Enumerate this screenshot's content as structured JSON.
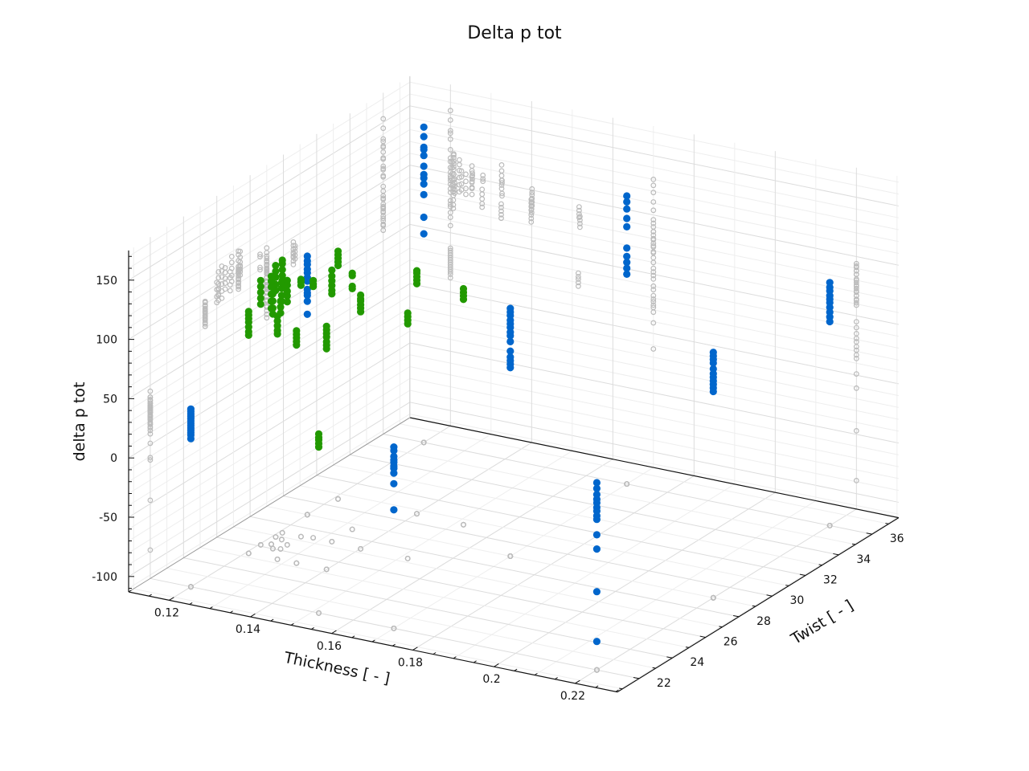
{
  "chart_data": {
    "type": "scatter",
    "projection": "3d",
    "title": "Delta p tot",
    "xlabel": "Thickness [ - ]",
    "ylabel": "Twist [ - ]",
    "zlabel": "delta p tot",
    "xlim": [
      0.11,
      0.2304
    ],
    "ylim": [
      20.7,
      37.6
    ],
    "zlim": [
      -113,
      175
    ],
    "xticks": [
      "0.12",
      "0.14",
      "0.16",
      "0.18",
      "0.2",
      "0.22"
    ],
    "yticks": [
      "22",
      "24",
      "26",
      "28",
      "30",
      "32",
      "34",
      "36"
    ],
    "zticks": [
      "-100",
      "-50",
      "0",
      "50",
      "100",
      "150"
    ],
    "grid": true,
    "wall_projections": true,
    "shadow_color": "#bbbbbb",
    "series": [
      {
        "name": "blue",
        "color": "#0066cc",
        "columns": [
          {
            "thickness": 0.12,
            "twist": 22,
            "z": [
              12,
              15,
              17,
              19,
              21,
              23,
              25,
              27,
              29,
              31,
              33,
              35,
              37
            ]
          },
          {
            "thickness": 0.12,
            "twist": 29,
            "z": [
              105,
              101,
              98,
              94,
              91,
              87,
              84,
              77,
              74,
              72,
              67,
              56
            ]
          },
          {
            "thickness": 0.12,
            "twist": 36,
            "z": [
              153,
              145,
              136,
              134,
              129,
              120,
              113,
              110,
              105,
              96,
              77,
              63
            ]
          },
          {
            "thickness": 0.17,
            "twist": 22,
            "z": [
              40,
              37,
              32,
              29,
              27,
              24,
              22,
              18,
              9,
              -13
            ]
          },
          {
            "thickness": 0.17,
            "twist": 29,
            "z": [
              96,
              93,
              90,
              86,
              83,
              80,
              76,
              73,
              68,
              60,
              55,
              52,
              49,
              46
            ]
          },
          {
            "thickness": 0.17,
            "twist": 36,
            "z": [
              130,
              125,
              119,
              111,
              104,
              86,
              79,
              74,
              69,
              64
            ]
          },
          {
            "thickness": 0.22,
            "twist": 22,
            "z": [
              45,
              40,
              35,
              31,
              28,
              24,
              21,
              17,
              14,
              1,
              -11,
              -47,
              -89
            ]
          },
          {
            "thickness": 0.22,
            "twist": 29,
            "z": [
              94,
              91,
              88,
              85,
              80,
              76,
              73,
              70,
              67,
              64,
              61
            ]
          },
          {
            "thickness": 0.22,
            "twist": 36,
            "z": [
              92,
              88,
              85,
              81,
              78,
              75,
              71,
              67,
              63,
              59
            ]
          }
        ]
      },
      {
        "name": "green",
        "color": "#229900",
        "columns": [
          {
            "thickness": 0.1207,
            "twist": 25.3,
            "z": [
              71,
              74,
              78,
              82,
              85,
              88,
              91
            ]
          },
          {
            "thickness": 0.1204,
            "twist": 26.1,
            "z": [
              90,
              95,
              100,
              105,
              110
            ]
          },
          {
            "thickness": 0.1222,
            "twist": 26.3,
            "z": [
              86,
              92,
              98,
              104,
              109,
              113
            ]
          },
          {
            "thickness": 0.1208,
            "twist": 26.9,
            "z": [
              95,
              100,
              106,
              111,
              116
            ]
          },
          {
            "thickness": 0.1208,
            "twist": 27.3,
            "z": [
              100,
              104,
              109,
              114,
              117
            ]
          },
          {
            "thickness": 0.1227,
            "twist": 26.8,
            "z": [
              88,
              93,
              99,
              104
            ]
          },
          {
            "thickness": 0.1253,
            "twist": 26.5,
            "z": [
              92,
              97,
              101,
              106,
              110
            ]
          },
          {
            "thickness": 0.1238,
            "twist": 26.0,
            "z": [
              85,
              90,
              96,
              102
            ]
          },
          {
            "thickness": 0.1253,
            "twist": 26.1,
            "z": [
              86,
              91,
              96
            ]
          },
          {
            "thickness": 0.1278,
            "twist": 25.3,
            "z": [
              77,
              80,
              84,
              88,
              92
            ]
          },
          {
            "thickness": 0.1325,
            "twist": 25.3,
            "z": [
              71,
              74,
              77,
              80,
              83
            ]
          },
          {
            "thickness": 0.1254,
            "twist": 27.3,
            "z": [
              99,
              102,
              104
            ]
          },
          {
            "thickness": 0.128,
            "twist": 27.4,
            "z": [
              99,
              101,
              104
            ]
          },
          {
            "thickness": 0.1515,
            "twist": 22.0,
            "z": [
              27,
              30,
              33,
              35,
              38
            ]
          },
          {
            "thickness": 0.1399,
            "twist": 25.3,
            "z": [
              73,
              76,
              79,
              83,
              86,
              89,
              92
            ]
          },
          {
            "thickness": 0.1326,
            "twist": 27.4,
            "z": [
              96,
              99,
              103,
              107,
              111,
              116
            ]
          },
          {
            "thickness": 0.121,
            "twist": 30.6,
            "z": [
              84,
              87,
              90,
              93,
              96
            ]
          },
          {
            "thickness": 0.1327,
            "twist": 28.6,
            "z": [
              90,
              92,
              101,
              103
            ]
          },
          {
            "thickness": 0.1401,
            "twist": 27.3,
            "z": [
              87,
              90,
              93,
              96,
              98,
              101
            ]
          },
          {
            "thickness": 0.1517,
            "twist": 27.3,
            "z": [
              85,
              88,
              91,
              94
            ]
          },
          {
            "thickness": 0.14,
            "twist": 30.7,
            "z": [
              81,
              84,
              87,
              90,
              92
            ]
          },
          {
            "thickness": 0.1519,
            "twist": 30.6,
            "z": [
              77,
              80,
              83,
              86
            ]
          }
        ]
      }
    ]
  }
}
